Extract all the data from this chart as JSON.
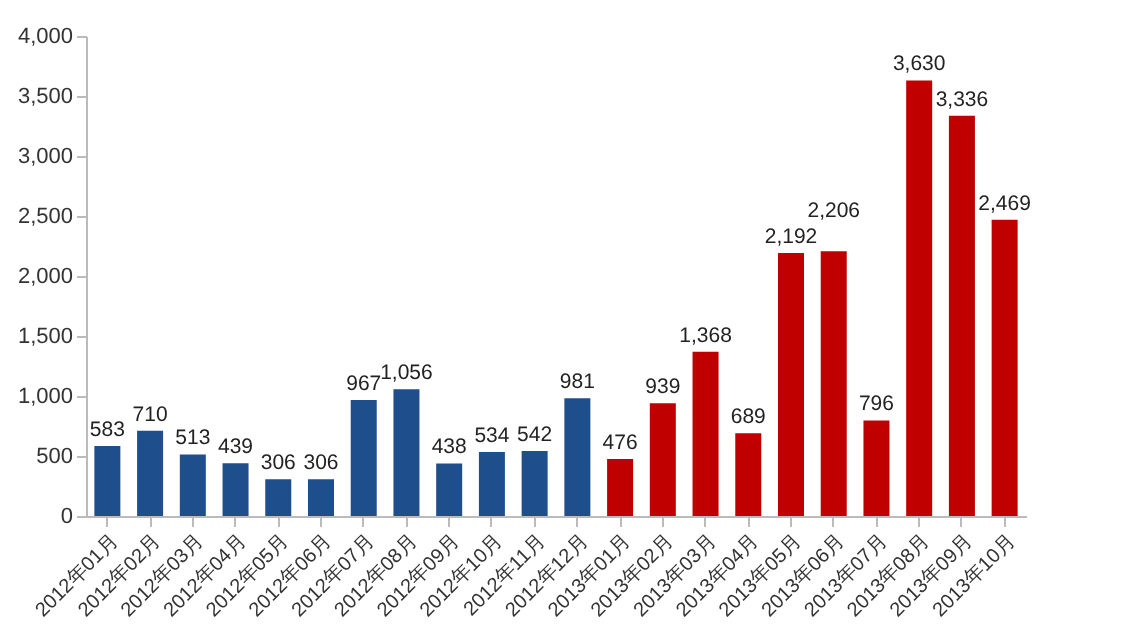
{
  "chart_data": {
    "type": "bar",
    "categories": [
      "2012年01月",
      "2012年02月",
      "2012年03月",
      "2012年04月",
      "2012年05月",
      "2012年06月",
      "2012年07月",
      "2012年08月",
      "2012年09月",
      "2012年10月",
      "2012年11月",
      "2012年12月",
      "2013年01月",
      "2013年02月",
      "2013年03月",
      "2013年04月",
      "2013年05月",
      "2013年06月",
      "2013年07月",
      "2013年08月",
      "2013年09月",
      "2013年10月"
    ],
    "values": [
      583,
      710,
      513,
      439,
      306,
      306,
      967,
      1056,
      438,
      534,
      542,
      981,
      476,
      939,
      1368,
      689,
      2192,
      2206,
      796,
      3630,
      3336,
      2469
    ],
    "value_labels": [
      "583",
      "710",
      "513",
      "439",
      "306",
      "306",
      "967",
      "1,056",
      "438",
      "534",
      "542",
      "981",
      "476",
      "939",
      "1,368",
      "689",
      "2,192",
      "2,206",
      "796",
      "3,630",
      "3,336",
      "2,469"
    ],
    "colors": [
      "#1f4e8c",
      "#1f4e8c",
      "#1f4e8c",
      "#1f4e8c",
      "#1f4e8c",
      "#1f4e8c",
      "#1f4e8c",
      "#1f4e8c",
      "#1f4e8c",
      "#1f4e8c",
      "#1f4e8c",
      "#1f4e8c",
      "#c00000",
      "#c00000",
      "#c00000",
      "#c00000",
      "#c00000",
      "#c00000",
      "#c00000",
      "#c00000",
      "#c00000",
      "#c00000"
    ],
    "ylim": [
      0,
      4000
    ],
    "yticks": [
      0,
      500,
      {
        "value": 1000,
        "label": "1,000"
      },
      {
        "value": 1500,
        "label": "1,500"
      },
      {
        "value": 2000,
        "label": "2,000"
      },
      {
        "value": 2500,
        "label": "2,500"
      },
      {
        "value": 3000,
        "label": "3,000"
      },
      {
        "value": 3500,
        "label": "3,500"
      },
      {
        "value": 4000,
        "label": "4,000"
      }
    ]
  }
}
